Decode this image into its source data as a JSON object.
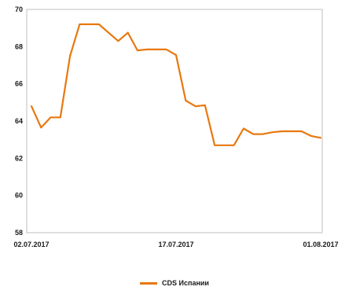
{
  "chart_data": {
    "type": "line",
    "title": "",
    "xlabel": "",
    "ylabel": "",
    "ylim": [
      58,
      70
    ],
    "yticks": [
      58,
      60,
      62,
      64,
      66,
      68,
      70
    ],
    "xtick_labels": [
      "02.07.2017",
      "17.07.2017",
      "01.08.2017"
    ],
    "x": [
      "2017-07-02",
      "2017-07-03",
      "2017-07-04",
      "2017-07-05",
      "2017-07-06",
      "2017-07-07",
      "2017-07-08",
      "2017-07-09",
      "2017-07-10",
      "2017-07-11",
      "2017-07-12",
      "2017-07-13",
      "2017-07-14",
      "2017-07-15",
      "2017-07-16",
      "2017-07-17",
      "2017-07-18",
      "2017-07-19",
      "2017-07-20",
      "2017-07-21",
      "2017-07-22",
      "2017-07-23",
      "2017-07-24",
      "2017-07-25",
      "2017-07-26",
      "2017-07-27",
      "2017-07-28",
      "2017-07-29",
      "2017-07-30",
      "2017-07-31",
      "2017-08-01"
    ],
    "series": [
      {
        "name": "CDS Испании",
        "color": "#E8780F",
        "values": [
          64.8,
          63.65,
          64.2,
          64.2,
          67.5,
          69.2,
          69.2,
          69.2,
          68.75,
          68.3,
          68.75,
          67.8,
          67.85,
          67.85,
          67.85,
          67.55,
          65.1,
          64.8,
          64.85,
          62.7,
          62.7,
          62.7,
          63.6,
          63.3,
          63.3,
          63.4,
          63.45,
          63.45,
          63.45,
          63.2,
          63.1
        ]
      }
    ],
    "legend_position": "bottom",
    "grid": false
  }
}
